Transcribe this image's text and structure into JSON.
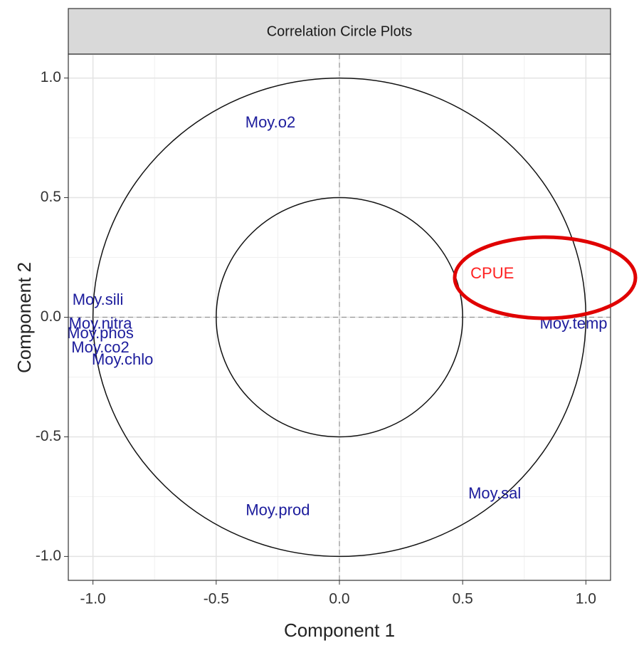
{
  "chart_data": {
    "type": "scatter",
    "title": "Correlation Circle Plots",
    "x_label": "Component 1",
    "y_label": "Component 2",
    "labels": [
      "Moy.o2",
      "CPUE",
      "Moy.temp",
      "Moy.sili",
      "Moy.nitra",
      "Moy.phos",
      "Moy.co2",
      "Moy.chlo",
      "Moy.prod",
      "Moy.sal"
    ],
    "x": [
      -0.28,
      0.62,
      0.95,
      -0.98,
      -0.97,
      -0.97,
      -0.97,
      -0.88,
      -0.25,
      0.63
    ],
    "y": [
      0.81,
      0.18,
      -0.03,
      0.07,
      -0.03,
      -0.07,
      -0.13,
      -0.18,
      -0.81,
      -0.74
    ],
    "colors": [
      "#1c1c9c",
      "#ff2020",
      "#1c1c9c",
      "#1c1c9c",
      "#1c1c9c",
      "#1c1c9c",
      "#1c1c9c",
      "#1c1c9c",
      "#1c1c9c",
      "#1c1c9c"
    ],
    "circle_radii": [
      1,
      0.5
    ],
    "hline": 0,
    "vline": 0,
    "xlim": [
      -1.1,
      1.1
    ],
    "ylim": [
      -1.1,
      1.1
    ],
    "xticks": [
      {
        "value": -1,
        "label": "-1.0"
      },
      -0.5,
      {
        "value": 0,
        "label": "0.0"
      },
      0.5,
      {
        "value": 1,
        "label": "1.0"
      }
    ],
    "yticks": [
      {
        "value": -1,
        "label": "-1.0"
      },
      -0.5,
      {
        "value": 0,
        "label": "0.0"
      },
      0.5,
      {
        "value": 1,
        "label": "1.0"
      }
    ],
    "grid": true
  }
}
